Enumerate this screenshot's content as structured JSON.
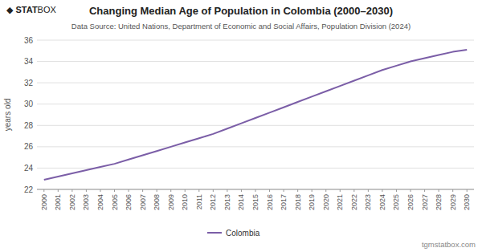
{
  "chart_data": {
    "type": "line",
    "title": "Changing Median Age of Population in Colombia (2000–2030)",
    "subtitle": "Data Source: United Nations, Department of Economic and Social Affairs, Population Division (2024)",
    "y_label": "years old",
    "x": [
      2000,
      2001,
      2002,
      2003,
      2004,
      2005,
      2006,
      2007,
      2008,
      2009,
      2010,
      2011,
      2012,
      2013,
      2014,
      2015,
      2016,
      2017,
      2018,
      2019,
      2020,
      2021,
      2022,
      2023,
      2024,
      2025,
      2026,
      2027,
      2028,
      2029,
      2030
    ],
    "series": [
      {
        "name": "Colombia",
        "color": "#7b5ea7",
        "values": [
          22.9,
          23.2,
          23.5,
          23.8,
          24.1,
          24.4,
          24.8,
          25.2,
          25.6,
          26.0,
          26.4,
          26.8,
          27.2,
          27.7,
          28.2,
          28.7,
          29.2,
          29.7,
          30.2,
          30.7,
          31.2,
          31.7,
          32.2,
          32.7,
          33.2,
          33.6,
          34.0,
          34.3,
          34.6,
          34.9,
          35.1
        ]
      }
    ],
    "xlim": [
      1999.5,
      2030.5
    ],
    "xticks": [
      2000,
      2001,
      2002,
      2003,
      2004,
      2005,
      2006,
      2007,
      2008,
      2009,
      2010,
      2011,
      2012,
      2013,
      2014,
      2015,
      2016,
      2017,
      2018,
      2019,
      2020,
      2021,
      2022,
      2023,
      2024,
      2025,
      2026,
      2027,
      2028,
      2029,
      2030
    ],
    "ylim": [
      22,
      36
    ],
    "yticks": [
      22,
      24,
      26,
      28,
      30,
      32,
      34,
      36
    ],
    "grid": true,
    "legend": "bottom",
    "annotations": [
      "◆ STAT",
      "BOX",
      "tgmstatbox.com"
    ]
  }
}
